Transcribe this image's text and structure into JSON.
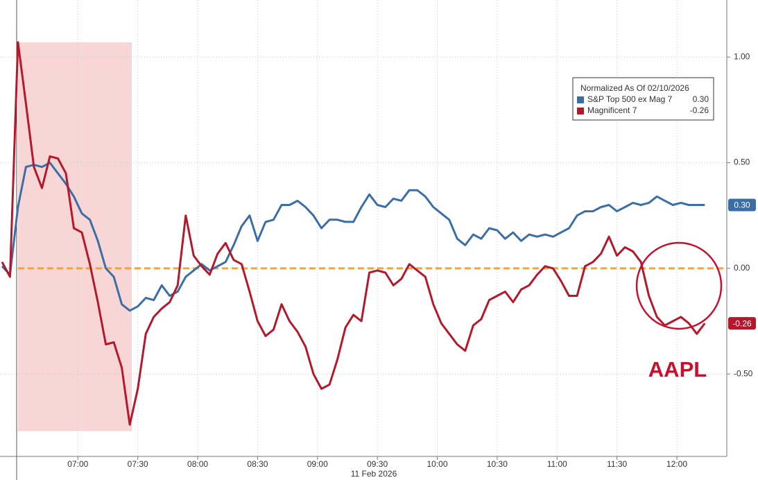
{
  "chart_data": {
    "type": "line",
    "x_label": "11 Feb 2026",
    "legend_title": "Normalized As Of 02/10/2026",
    "annotation": "AAPL",
    "xlim": [
      "06:21",
      "12:25"
    ],
    "ylim": [
      -0.89,
      1.27
    ],
    "xticks": [
      "07:00",
      "07:30",
      "08:00",
      "08:30",
      "09:00",
      "09:30",
      "10:00",
      "10:30",
      "11:00",
      "11:30",
      "12:00"
    ],
    "yticks": [
      {
        "value": 1,
        "label": "1.00"
      },
      {
        "value": 0.5,
        "label": "0.50"
      },
      {
        "value": 0,
        "label": "0.00"
      },
      {
        "value": -0.5,
        "label": "-0.50"
      }
    ],
    "grid": true,
    "highlight": {
      "x": [
        "06:30",
        "07:27"
      ],
      "y": [
        -0.77,
        1.07
      ],
      "color": "#f9d6d6"
    },
    "reference_line": {
      "value": 0,
      "color": "#f2a43a"
    },
    "x": [
      "06:22",
      "06:26",
      "06:30",
      "06:34",
      "06:38",
      "06:42",
      "06:46",
      "06:50",
      "06:54",
      "06:58",
      "07:02",
      "07:06",
      "07:10",
      "07:14",
      "07:18",
      "07:22",
      "07:26",
      "07:30",
      "07:34",
      "07:38",
      "07:42",
      "07:46",
      "07:50",
      "07:54",
      "07:58",
      "08:02",
      "08:06",
      "08:10",
      "08:14",
      "08:18",
      "08:22",
      "08:26",
      "08:30",
      "08:34",
      "08:38",
      "08:42",
      "08:46",
      "08:50",
      "08:54",
      "08:58",
      "09:02",
      "09:06",
      "09:10",
      "09:14",
      "09:18",
      "09:22",
      "09:26",
      "09:30",
      "09:34",
      "09:38",
      "09:42",
      "09:46",
      "09:50",
      "09:54",
      "09:58",
      "10:02",
      "10:06",
      "10:10",
      "10:14",
      "10:18",
      "10:22",
      "10:26",
      "10:30",
      "10:34",
      "10:38",
      "10:42",
      "10:46",
      "10:50",
      "10:54",
      "10:58",
      "11:02",
      "11:06",
      "11:10",
      "11:14",
      "11:18",
      "11:22",
      "11:26",
      "11:30",
      "11:34",
      "11:38",
      "11:42",
      "11:46",
      "11:50",
      "11:54",
      "11:58",
      "12:02",
      "12:06",
      "12:10",
      "12:14"
    ],
    "series": [
      {
        "name": "S&P Top 500 ex Mag 7",
        "color": "#3b6ea6",
        "last_value_label": "0.30",
        "values": [
          0.01,
          -0.03,
          0.29,
          0.48,
          0.49,
          0.48,
          0.5,
          0.45,
          0.4,
          0.34,
          0.26,
          0.23,
          0.13,
          0.0,
          -0.04,
          -0.17,
          -0.2,
          -0.18,
          -0.14,
          -0.15,
          -0.08,
          -0.13,
          -0.11,
          -0.04,
          -0.01,
          0.02,
          -0.01,
          0.01,
          0.03,
          0.11,
          0.2,
          0.25,
          0.13,
          0.22,
          0.23,
          0.3,
          0.3,
          0.32,
          0.29,
          0.25,
          0.19,
          0.23,
          0.23,
          0.22,
          0.22,
          0.29,
          0.35,
          0.3,
          0.29,
          0.33,
          0.32,
          0.37,
          0.37,
          0.34,
          0.29,
          0.26,
          0.23,
          0.14,
          0.11,
          0.16,
          0.14,
          0.19,
          0.18,
          0.14,
          0.17,
          0.13,
          0.16,
          0.15,
          0.16,
          0.15,
          0.17,
          0.19,
          0.25,
          0.27,
          0.27,
          0.29,
          0.3,
          0.27,
          0.29,
          0.31,
          0.3,
          0.31,
          0.34,
          0.32,
          0.3,
          0.31,
          0.3,
          0.3,
          0.3
        ]
      },
      {
        "name": "Magnificent 7",
        "color": "#b5182b",
        "last_value_label": "-0.26",
        "values": [
          0.03,
          -0.04,
          1.07,
          0.78,
          0.48,
          0.38,
          0.53,
          0.52,
          0.45,
          0.19,
          0.17,
          0.02,
          -0.16,
          -0.36,
          -0.35,
          -0.47,
          -0.74,
          -0.57,
          -0.31,
          -0.23,
          -0.19,
          -0.16,
          -0.08,
          0.25,
          0.06,
          0.01,
          -0.03,
          0.07,
          0.12,
          0.04,
          0.02,
          -0.11,
          -0.25,
          -0.32,
          -0.29,
          -0.17,
          -0.25,
          -0.3,
          -0.37,
          -0.5,
          -0.57,
          -0.55,
          -0.43,
          -0.28,
          -0.22,
          -0.25,
          -0.02,
          -0.01,
          -0.02,
          -0.08,
          -0.05,
          0.02,
          -0.01,
          -0.04,
          -0.17,
          -0.26,
          -0.31,
          -0.36,
          -0.39,
          -0.27,
          -0.24,
          -0.15,
          -0.13,
          -0.11,
          -0.16,
          -0.1,
          -0.08,
          -0.03,
          0.01,
          0.0,
          -0.06,
          -0.13,
          -0.13,
          0.01,
          0.03,
          0.07,
          0.15,
          0.06,
          0.1,
          0.08,
          0.03,
          -0.13,
          -0.23,
          -0.27,
          -0.25,
          -0.23,
          -0.26,
          -0.31,
          -0.26
        ]
      }
    ]
  }
}
